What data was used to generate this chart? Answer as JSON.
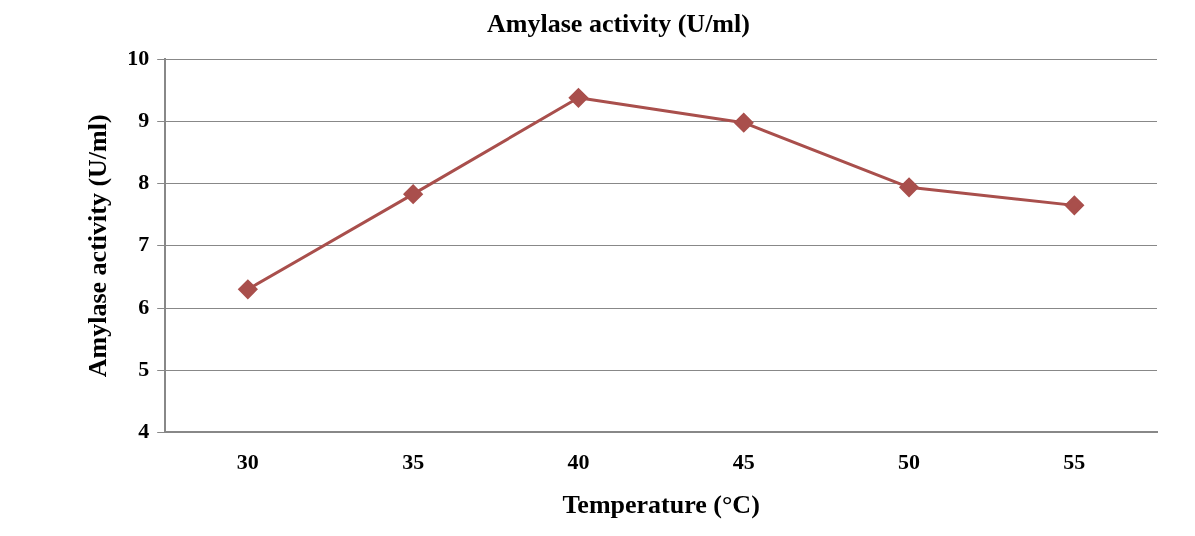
{
  "chart_data": {
    "type": "line",
    "title": "Amylase activity (U/ml)",
    "xlabel": "Temperature (°C)",
    "ylabel": "Amylase activity (U/ml)",
    "categories": [
      "30",
      "35",
      "40",
      "45",
      "50",
      "55"
    ],
    "series": [
      {
        "color": "#a94f4c",
        "values": [
          6.3,
          7.83,
          9.38,
          8.98,
          7.94,
          7.65
        ]
      }
    ],
    "ylim": [
      4,
      10
    ],
    "yticks": [
      4,
      5,
      6,
      7,
      8,
      9,
      10
    ],
    "grid": "y",
    "legend": false,
    "marker": "diamond",
    "line_style": "solid"
  }
}
